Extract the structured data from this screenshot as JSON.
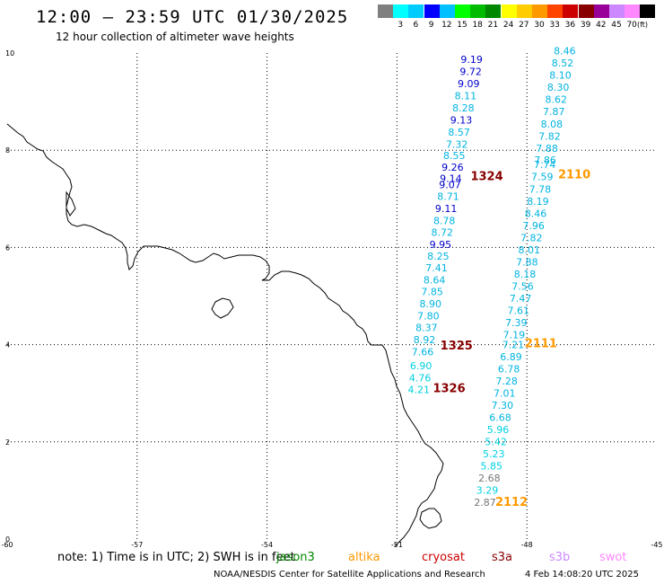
{
  "header": {
    "title": "12:00 – 23:59 UTC 01/30/2025",
    "subtitle": "12 hour collection of altimeter wave heights"
  },
  "color_scale": {
    "unit": "(ft)",
    "bins": [
      {
        "label": "",
        "color": "#7f7f7f"
      },
      {
        "label": "3",
        "color": "#00ffff"
      },
      {
        "label": "6",
        "color": "#00ccff"
      },
      {
        "label": "9",
        "color": "#0000ff"
      },
      {
        "label": "12",
        "color": "#00c0ff"
      },
      {
        "label": "15",
        "color": "#00ff00"
      },
      {
        "label": "18",
        "color": "#00bb00"
      },
      {
        "label": "21",
        "color": "#008800"
      },
      {
        "label": "24",
        "color": "#ffff00"
      },
      {
        "label": "27",
        "color": "#ffcc00"
      },
      {
        "label": "30",
        "color": "#ff9900"
      },
      {
        "label": "33",
        "color": "#ff4400"
      },
      {
        "label": "36",
        "color": "#cc0000"
      },
      {
        "label": "39",
        "color": "#880000"
      },
      {
        "label": "42",
        "color": "#990099"
      },
      {
        "label": "45",
        "color": "#cc88ff"
      },
      {
        "label": "70",
        "color": "#ff88ff"
      },
      {
        "label": "",
        "color": "#000000"
      }
    ]
  },
  "axes": {
    "x_ticks": [
      "-60",
      "-57",
      "-54",
      "-51",
      "-48",
      "-45"
    ],
    "y_ticks": [
      "0",
      "2",
      "4",
      "6",
      "8",
      "10"
    ],
    "lon_range": [
      -60,
      -45
    ],
    "lat_range": [
      0,
      10
    ]
  },
  "tracks": {
    "cryosat_west": {
      "color_dark": "#0000cc",
      "color_light": "#00b4e0",
      "points": [
        {
          "v": "9.19",
          "lon": -49.53,
          "lat": 9.8,
          "c": "dark"
        },
        {
          "v": "9.72",
          "lon": -49.55,
          "lat": 9.55,
          "c": "dark"
        },
        {
          "v": "9.09",
          "lon": -49.6,
          "lat": 9.3,
          "c": "dark"
        },
        {
          "v": "8.11",
          "lon": -49.67,
          "lat": 9.05,
          "c": "light"
        },
        {
          "v": "8.28",
          "lon": -49.72,
          "lat": 8.8,
          "c": "light"
        },
        {
          "v": "9.13",
          "lon": -49.77,
          "lat": 8.55,
          "c": "dark"
        },
        {
          "v": "8.57",
          "lon": -49.82,
          "lat": 8.3,
          "c": "light"
        },
        {
          "v": "7.32",
          "lon": -49.87,
          "lat": 8.05,
          "c": "light"
        },
        {
          "v": "8.55",
          "lon": -49.93,
          "lat": 7.82,
          "c": "light"
        },
        {
          "v": "9.26",
          "lon": -49.97,
          "lat": 7.58,
          "c": "dark"
        },
        {
          "v": "9.14",
          "lon": -50.01,
          "lat": 7.35,
          "c": "dark"
        },
        {
          "v": "9.07",
          "lon": -50.03,
          "lat": 7.22,
          "c": "dark"
        },
        {
          "v": "8.71",
          "lon": -50.07,
          "lat": 6.98,
          "c": "light"
        },
        {
          "v": "9.11",
          "lon": -50.12,
          "lat": 6.73,
          "c": "dark"
        },
        {
          "v": "8.78",
          "lon": -50.16,
          "lat": 6.48,
          "c": "light"
        },
        {
          "v": "8.72",
          "lon": -50.21,
          "lat": 6.24,
          "c": "light"
        },
        {
          "v": "9.95",
          "lon": -50.25,
          "lat": 5.99,
          "c": "dark"
        },
        {
          "v": "8.25",
          "lon": -50.3,
          "lat": 5.75,
          "c": "light"
        },
        {
          "v": "7.41",
          "lon": -50.34,
          "lat": 5.51,
          "c": "light"
        },
        {
          "v": "8.64",
          "lon": -50.39,
          "lat": 5.26,
          "c": "light"
        },
        {
          "v": "7.85",
          "lon": -50.44,
          "lat": 5.02,
          "c": "light"
        },
        {
          "v": "8.90",
          "lon": -50.48,
          "lat": 4.77,
          "c": "light"
        },
        {
          "v": "7.80",
          "lon": -50.53,
          "lat": 4.52,
          "c": "light"
        },
        {
          "v": "8.37",
          "lon": -50.57,
          "lat": 4.28,
          "c": "light"
        },
        {
          "v": "8.92",
          "lon": -50.62,
          "lat": 4.03,
          "c": "light"
        },
        {
          "v": "7.66",
          "lon": -50.66,
          "lat": 3.78,
          "c": "light"
        },
        {
          "v": "6.90",
          "lon": -50.7,
          "lat": 3.49,
          "c": "cyan"
        },
        {
          "v": "4.76",
          "lon": -50.72,
          "lat": 3.24,
          "c": "cyan"
        },
        {
          "v": "4.21",
          "lon": -50.75,
          "lat": 3.0,
          "c": "cyan"
        }
      ]
    },
    "cryosat_east": {
      "points": [
        {
          "v": "8.46",
          "lon": -47.38,
          "lat": 9.97,
          "c": "light"
        },
        {
          "v": "8.52",
          "lon": -47.43,
          "lat": 9.72,
          "c": "light"
        },
        {
          "v": "8.10",
          "lon": -47.48,
          "lat": 9.47,
          "c": "light"
        },
        {
          "v": "8.30",
          "lon": -47.53,
          "lat": 9.22,
          "c": "light"
        },
        {
          "v": "8.62",
          "lon": -47.58,
          "lat": 8.97,
          "c": "light"
        },
        {
          "v": "7.87",
          "lon": -47.63,
          "lat": 8.72,
          "c": "light"
        },
        {
          "v": "8.08",
          "lon": -47.68,
          "lat": 8.47,
          "c": "light"
        },
        {
          "v": "7.82",
          "lon": -47.73,
          "lat": 8.22,
          "c": "light"
        },
        {
          "v": "7.88",
          "lon": -47.79,
          "lat": 7.97,
          "c": "light"
        },
        {
          "v": "7.86",
          "lon": -47.83,
          "lat": 7.73,
          "c": "light"
        },
        {
          "v": "7.74",
          "lon": -47.84,
          "lat": 7.63,
          "c": "light"
        },
        {
          "v": "7.59",
          "lon": -47.9,
          "lat": 7.38,
          "c": "light"
        },
        {
          "v": "7.78",
          "lon": -47.95,
          "lat": 7.13,
          "c": "light"
        },
        {
          "v": "8.19",
          "lon": -48.0,
          "lat": 6.88,
          "c": "light"
        },
        {
          "v": "8.46",
          "lon": -48.05,
          "lat": 6.63,
          "c": "light"
        },
        {
          "v": "7.96",
          "lon": -48.1,
          "lat": 6.38,
          "c": "light"
        },
        {
          "v": "7.82",
          "lon": -48.15,
          "lat": 6.13,
          "c": "light"
        },
        {
          "v": "8.01",
          "lon": -48.2,
          "lat": 5.88,
          "c": "light"
        },
        {
          "v": "7.88",
          "lon": -48.25,
          "lat": 5.63,
          "c": "light"
        },
        {
          "v": "8.18",
          "lon": -48.3,
          "lat": 5.38,
          "c": "light"
        },
        {
          "v": "7.56",
          "lon": -48.35,
          "lat": 5.13,
          "c": "light"
        },
        {
          "v": "7.47",
          "lon": -48.4,
          "lat": 4.88,
          "c": "light"
        },
        {
          "v": "7.61",
          "lon": -48.45,
          "lat": 4.63,
          "c": "light"
        },
        {
          "v": "7.39",
          "lon": -48.5,
          "lat": 4.38,
          "c": "light"
        },
        {
          "v": "7.19",
          "lon": -48.55,
          "lat": 4.13,
          "c": "light"
        },
        {
          "v": "7.21",
          "lon": -48.57,
          "lat": 3.93,
          "c": "light"
        },
        {
          "v": "6.89",
          "lon": -48.62,
          "lat": 3.68,
          "c": "light"
        },
        {
          "v": "6.78",
          "lon": -48.67,
          "lat": 3.43,
          "c": "light"
        },
        {
          "v": "7.28",
          "lon": -48.72,
          "lat": 3.18,
          "c": "light"
        },
        {
          "v": "7.01",
          "lon": -48.77,
          "lat": 2.93,
          "c": "light"
        },
        {
          "v": "7.30",
          "lon": -48.82,
          "lat": 2.68,
          "c": "light"
        },
        {
          "v": "6.68",
          "lon": -48.87,
          "lat": 2.43,
          "c": "light"
        },
        {
          "v": "5.96",
          "lon": -48.92,
          "lat": 2.18,
          "c": "cyan"
        },
        {
          "v": "5.42",
          "lon": -48.97,
          "lat": 1.93,
          "c": "cyan"
        },
        {
          "v": "5.23",
          "lon": -49.02,
          "lat": 1.68,
          "c": "cyan"
        },
        {
          "v": "5.85",
          "lon": -49.07,
          "lat": 1.43,
          "c": "cyan"
        },
        {
          "v": "2.68",
          "lon": -49.12,
          "lat": 1.18,
          "c": "gray"
        },
        {
          "v": "3.29",
          "lon": -49.17,
          "lat": 0.93,
          "c": "cyan"
        },
        {
          "v": "2.87",
          "lon": -49.22,
          "lat": 0.68,
          "c": "gray"
        }
      ]
    },
    "pass_labels": [
      {
        "text": "1324",
        "lon": -49.3,
        "lat": 7.38,
        "color": "#880000"
      },
      {
        "text": "2110",
        "lon": -47.28,
        "lat": 7.42,
        "color": "#ff9900"
      },
      {
        "text": "1325",
        "lon": -50.0,
        "lat": 3.9,
        "color": "#880000"
      },
      {
        "text": "2111",
        "lon": -48.05,
        "lat": 3.95,
        "color": "#ff9900"
      },
      {
        "text": "1326",
        "lon": -50.17,
        "lat": 3.02,
        "color": "#880000"
      },
      {
        "text": "2112",
        "lon": -48.73,
        "lat": 0.68,
        "color": "#ff9900"
      }
    ]
  },
  "footer": {
    "note": "note: 1) Time is in UTC; 2) SWH is in feet",
    "legend": [
      {
        "label": "jason3",
        "color": "#008800"
      },
      {
        "label": "altika",
        "color": "#ff9900"
      },
      {
        "label": "cryosat",
        "color": "#cc0000"
      },
      {
        "label": "s3a",
        "color": "#880000"
      },
      {
        "label": "s3b",
        "color": "#cc88ff"
      },
      {
        "label": "swot",
        "color": "#ff88ff"
      }
    ],
    "credit": "NOAA/NESDIS Center for Satellite Applications and Research",
    "timestamp": "4 Feb 14:08:20 UTC 2025"
  }
}
